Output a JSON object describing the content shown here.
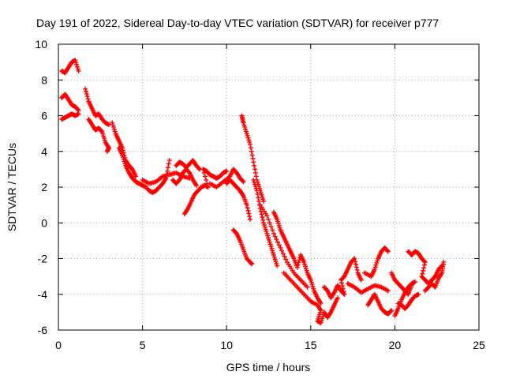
{
  "chart_data": {
    "type": "scatter",
    "title": "Day 191 of 2022, Sidereal Day-to-day VTEC variation (SDTVAR) for receiver p777",
    "xlabel": "GPS time / hours",
    "ylabel": "SDTVAR / TECUs",
    "xlim": [
      0,
      25
    ],
    "ylim": [
      -6,
      10
    ],
    "xticks": [
      "0",
      "5",
      "10",
      "15",
      "20",
      "25"
    ],
    "yticks": [
      "-6",
      "-4",
      "-2",
      "0",
      "2",
      "4",
      "6",
      "8",
      "10"
    ],
    "grid": true,
    "marker": "plus",
    "marker_color": "#ff0000",
    "series": [
      {
        "name": "",
        "points": [
          [
            0.2,
            8.5
          ],
          [
            0.4,
            8.4
          ],
          [
            0.6,
            8.7
          ],
          [
            0.8,
            9.0
          ],
          [
            1.0,
            9.1
          ],
          [
            1.2,
            8.5
          ],
          [
            0.2,
            7.0
          ],
          [
            0.4,
            7.2
          ],
          [
            0.6,
            6.9
          ],
          [
            0.8,
            6.6
          ],
          [
            1.0,
            6.5
          ],
          [
            1.2,
            6.3
          ],
          [
            0.2,
            5.8
          ],
          [
            0.4,
            5.9
          ],
          [
            0.6,
            6.0
          ],
          [
            0.8,
            6.1
          ],
          [
            1.0,
            6.0
          ],
          [
            1.2,
            6.1
          ],
          [
            1.6,
            7.5
          ],
          [
            1.8,
            6.8
          ],
          [
            2.0,
            6.4
          ],
          [
            2.2,
            6.0
          ],
          [
            2.4,
            6.1
          ],
          [
            2.6,
            5.8
          ],
          [
            2.8,
            5.6
          ],
          [
            3.0,
            5.5
          ],
          [
            1.8,
            5.8
          ],
          [
            2.0,
            5.5
          ],
          [
            2.2,
            5.2
          ],
          [
            2.4,
            5.3
          ],
          [
            2.6,
            5.1
          ],
          [
            2.8,
            4.5
          ],
          [
            3.0,
            4.2
          ],
          [
            2.9,
            4.0
          ],
          [
            3.2,
            5.6
          ],
          [
            3.4,
            5.0
          ],
          [
            3.6,
            4.6
          ],
          [
            3.8,
            4.2
          ],
          [
            4.0,
            3.5
          ],
          [
            4.2,
            3.2
          ],
          [
            4.4,
            3.0
          ],
          [
            4.6,
            2.6
          ],
          [
            3.6,
            4.2
          ],
          [
            3.8,
            3.8
          ],
          [
            4.0,
            3.2
          ],
          [
            4.2,
            2.8
          ],
          [
            4.4,
            2.5
          ],
          [
            4.6,
            2.3
          ],
          [
            4.8,
            2.2
          ],
          [
            5.0,
            2.1
          ],
          [
            5.2,
            2.0
          ],
          [
            5.4,
            1.8
          ],
          [
            5.6,
            1.7
          ],
          [
            5.8,
            1.8
          ],
          [
            6.0,
            2.0
          ],
          [
            6.2,
            2.2
          ],
          [
            6.4,
            2.5
          ],
          [
            6.6,
            3.5
          ],
          [
            5.0,
            2.4
          ],
          [
            5.4,
            2.2
          ],
          [
            5.8,
            2.3
          ],
          [
            6.2,
            2.6
          ],
          [
            6.6,
            2.7
          ],
          [
            7.0,
            2.8
          ],
          [
            7.4,
            2.6
          ],
          [
            7.8,
            2.5
          ],
          [
            6.8,
            2.4
          ],
          [
            7.0,
            2.2
          ],
          [
            7.2,
            2.4
          ],
          [
            7.4,
            2.8
          ],
          [
            7.6,
            3.0
          ],
          [
            7.8,
            2.8
          ],
          [
            8.0,
            2.4
          ],
          [
            8.2,
            2.1
          ],
          [
            7.0,
            3.2
          ],
          [
            7.2,
            3.4
          ],
          [
            7.4,
            3.3
          ],
          [
            7.6,
            3.1
          ],
          [
            7.8,
            3.3
          ],
          [
            8.0,
            3.5
          ],
          [
            8.2,
            3.2
          ],
          [
            8.4,
            3.0
          ],
          [
            7.5,
            0.5
          ],
          [
            7.7,
            0.8
          ],
          [
            7.9,
            1.2
          ],
          [
            8.1,
            1.6
          ],
          [
            8.3,
            1.8
          ],
          [
            8.5,
            2.0
          ],
          [
            8.7,
            2.1
          ],
          [
            8.9,
            2.0
          ],
          [
            8.6,
            3.0
          ],
          [
            8.8,
            2.9
          ],
          [
            9.0,
            2.7
          ],
          [
            9.2,
            2.6
          ],
          [
            9.4,
            2.5
          ],
          [
            9.6,
            2.6
          ],
          [
            9.8,
            2.8
          ],
          [
            10.0,
            2.9
          ],
          [
            9.0,
            2.2
          ],
          [
            9.4,
            2.0
          ],
          [
            9.8,
            2.3
          ],
          [
            10.2,
            2.6
          ],
          [
            10.4,
            3.0
          ],
          [
            10.6,
            2.8
          ],
          [
            10.8,
            2.5
          ],
          [
            11.0,
            2.3
          ],
          [
            10.0,
            2.2
          ],
          [
            10.2,
            2.4
          ],
          [
            10.4,
            2.2
          ],
          [
            10.6,
            2.0
          ],
          [
            10.8,
            1.8
          ],
          [
            11.0,
            1.5
          ],
          [
            11.2,
            1.0
          ],
          [
            11.4,
            0.2
          ],
          [
            10.4,
            -0.4
          ],
          [
            10.6,
            -0.6
          ],
          [
            10.8,
            -1.0
          ],
          [
            11.0,
            -1.5
          ],
          [
            11.2,
            -2.0
          ],
          [
            11.4,
            -2.2
          ],
          [
            11.5,
            -2.3
          ],
          [
            10.9,
            6.0
          ],
          [
            11.0,
            5.6
          ],
          [
            11.2,
            5.0
          ],
          [
            11.4,
            4.4
          ],
          [
            11.6,
            3.4
          ],
          [
            11.8,
            2.4
          ],
          [
            12.0,
            1.8
          ],
          [
            12.2,
            1.2
          ],
          [
            11.6,
            2.4
          ],
          [
            11.8,
            1.8
          ],
          [
            12.0,
            0.8
          ],
          [
            12.2,
            0.0
          ],
          [
            12.4,
            -0.6
          ],
          [
            12.6,
            -1.2
          ],
          [
            12.8,
            -1.8
          ],
          [
            13.0,
            -2.4
          ],
          [
            12.0,
            1.0
          ],
          [
            12.4,
            0.4
          ],
          [
            12.8,
            -0.6
          ],
          [
            13.2,
            -1.4
          ],
          [
            13.6,
            -2.2
          ],
          [
            14.0,
            -2.8
          ],
          [
            14.4,
            -3.2
          ],
          [
            14.8,
            -3.6
          ],
          [
            12.8,
            0.6
          ],
          [
            13.0,
            0.2
          ],
          [
            13.2,
            -0.4
          ],
          [
            13.4,
            -0.8
          ],
          [
            13.6,
            -1.2
          ],
          [
            13.8,
            -1.6
          ],
          [
            14.0,
            -2.0
          ],
          [
            14.2,
            -2.5
          ],
          [
            14.4,
            -1.8
          ],
          [
            14.6,
            -2.2
          ],
          [
            14.8,
            -2.8
          ],
          [
            15.0,
            -3.2
          ],
          [
            15.2,
            -3.8
          ],
          [
            15.4,
            -4.2
          ],
          [
            15.6,
            -4.5
          ],
          [
            13.4,
            -2.8
          ],
          [
            13.8,
            -3.2
          ],
          [
            14.2,
            -3.6
          ],
          [
            14.6,
            -4.0
          ],
          [
            15.0,
            -4.4
          ],
          [
            15.4,
            -4.6
          ],
          [
            15.6,
            -4.9
          ],
          [
            15.4,
            -5.5
          ],
          [
            15.6,
            -5.6
          ],
          [
            15.8,
            -5.0
          ],
          [
            16.0,
            -5.3
          ],
          [
            16.2,
            -5.0
          ],
          [
            16.4,
            -4.6
          ],
          [
            16.6,
            -4.2
          ],
          [
            15.8,
            -3.6
          ],
          [
            16.0,
            -3.8
          ],
          [
            16.2,
            -4.2
          ],
          [
            16.4,
            -3.9
          ],
          [
            16.6,
            -3.5
          ],
          [
            16.8,
            -3.8
          ],
          [
            17.0,
            -4.0
          ],
          [
            16.8,
            -3.2
          ],
          [
            17.0,
            -3.0
          ],
          [
            17.2,
            -2.6
          ],
          [
            17.4,
            -2.2
          ],
          [
            17.6,
            -2.0
          ],
          [
            17.8,
            -2.8
          ],
          [
            18.0,
            -3.2
          ],
          [
            17.2,
            -3.4
          ],
          [
            17.6,
            -3.6
          ],
          [
            18.0,
            -3.9
          ],
          [
            18.4,
            -3.7
          ],
          [
            18.8,
            -3.5
          ],
          [
            19.2,
            -3.6
          ],
          [
            19.6,
            -3.8
          ],
          [
            18.2,
            -2.8
          ],
          [
            18.6,
            -3.0
          ],
          [
            18.8,
            -2.6
          ],
          [
            19.0,
            -2.0
          ],
          [
            19.2,
            -1.6
          ],
          [
            19.4,
            -1.4
          ],
          [
            19.6,
            -1.6
          ],
          [
            18.4,
            -4.6
          ],
          [
            18.6,
            -4.3
          ],
          [
            18.8,
            -4.0
          ],
          [
            19.0,
            -4.4
          ],
          [
            19.2,
            -4.8
          ],
          [
            19.4,
            -5.0
          ],
          [
            19.6,
            -5.1
          ],
          [
            19.8,
            -4.9
          ],
          [
            19.8,
            -2.8
          ],
          [
            20.0,
            -3.2
          ],
          [
            20.2,
            -3.4
          ],
          [
            20.4,
            -3.6
          ],
          [
            20.6,
            -3.8
          ],
          [
            20.8,
            -4.0
          ],
          [
            21.0,
            -3.5
          ],
          [
            20.0,
            -5.2
          ],
          [
            20.2,
            -4.8
          ],
          [
            20.4,
            -4.3
          ],
          [
            20.6,
            -3.9
          ],
          [
            20.8,
            -3.6
          ],
          [
            21.0,
            -3.4
          ],
          [
            21.2,
            -3.3
          ],
          [
            20.2,
            -4.5
          ],
          [
            20.4,
            -4.6
          ],
          [
            20.6,
            -4.8
          ],
          [
            20.8,
            -4.6
          ],
          [
            21.0,
            -4.3
          ],
          [
            21.2,
            -4.1
          ],
          [
            21.4,
            -4.0
          ],
          [
            20.8,
            -1.6
          ],
          [
            21.0,
            -1.8
          ],
          [
            21.2,
            -1.6
          ],
          [
            21.4,
            -1.7
          ],
          [
            21.6,
            -2.0
          ],
          [
            21.8,
            -2.2
          ],
          [
            21.6,
            -3.0
          ],
          [
            21.8,
            -3.2
          ],
          [
            22.0,
            -3.4
          ],
          [
            22.2,
            -3.2
          ],
          [
            22.4,
            -3.0
          ],
          [
            22.6,
            -2.6
          ],
          [
            22.8,
            -2.4
          ],
          [
            21.8,
            -3.8
          ],
          [
            22.0,
            -3.6
          ],
          [
            22.2,
            -3.4
          ],
          [
            22.4,
            -3.6
          ],
          [
            22.6,
            -3.1
          ],
          [
            22.8,
            -2.8
          ],
          [
            22.9,
            -2.2
          ]
        ]
      }
    ]
  }
}
